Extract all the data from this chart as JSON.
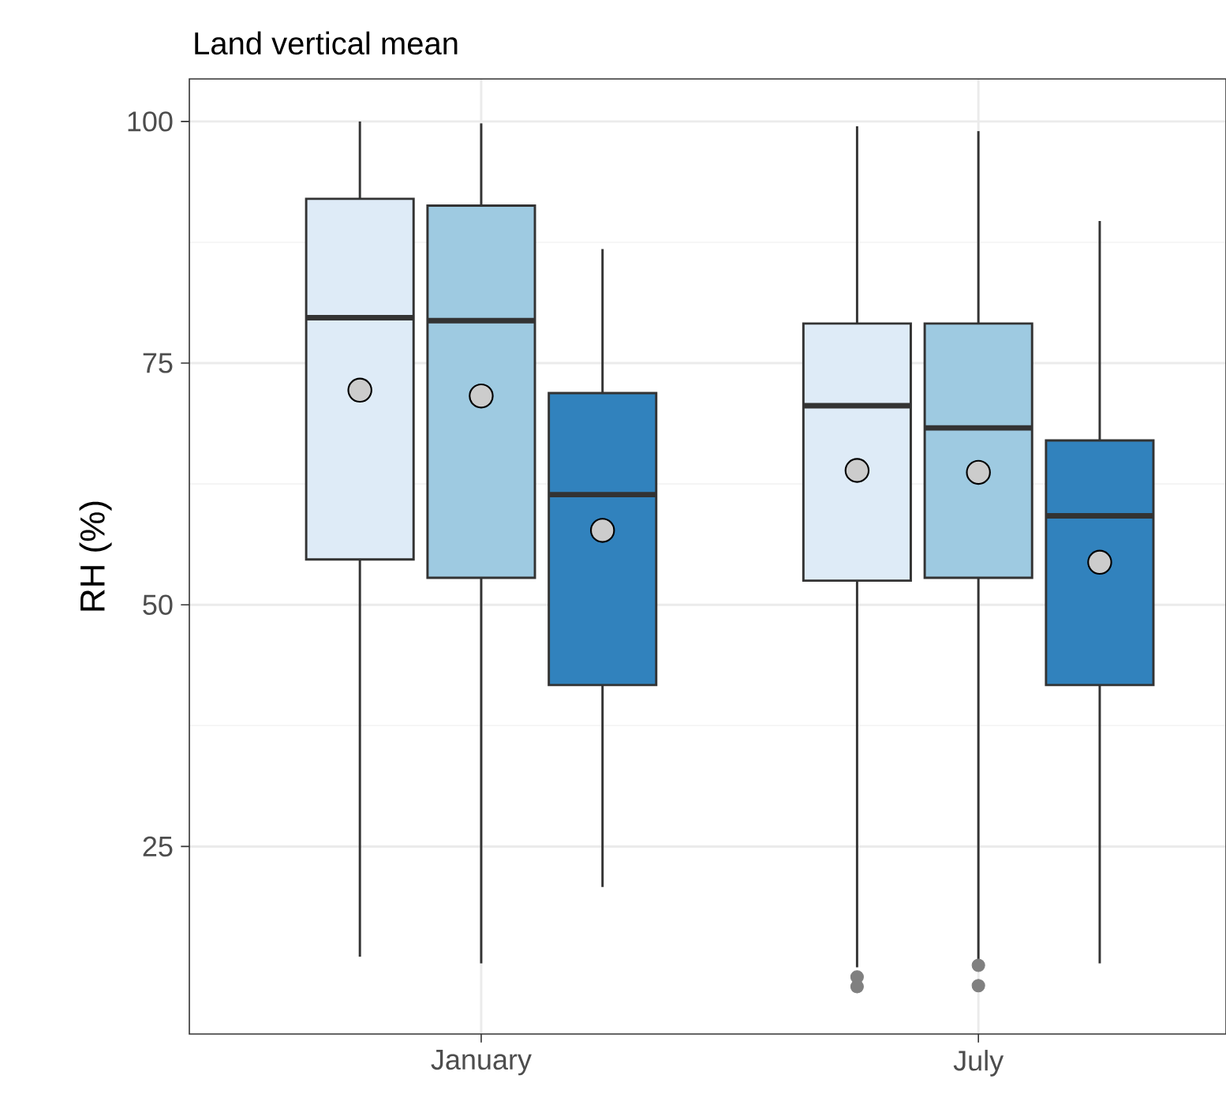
{
  "chart_data": {
    "type": "box",
    "title": "Land vertical mean",
    "ylabel": "RH (%)",
    "categories": [
      "January",
      "July"
    ],
    "ylim": [
      5.6,
      104.4
    ],
    "yticks": [
      25,
      50,
      75,
      100
    ],
    "grid": true,
    "series": [
      {
        "color": "#deebf7",
        "boxes": [
          {
            "low": 13.6,
            "q1": 54.7,
            "median": 79.7,
            "q3": 92,
            "high": 100,
            "mean": 72.2
          },
          {
            "low": 12.5,
            "q1": 52.5,
            "median": 70.6,
            "q3": 79.1,
            "high": 99.5,
            "mean": 63.9,
            "outliers": [
              11.5,
              10.5
            ]
          }
        ]
      },
      {
        "color": "#9ecae1",
        "boxes": [
          {
            "low": 12.9,
            "q1": 52.8,
            "median": 79.4,
            "q3": 91.3,
            "high": 99.8,
            "mean": 71.6
          },
          {
            "low": 12.4,
            "q1": 52.8,
            "median": 68.3,
            "q3": 79.1,
            "high": 99,
            "mean": 63.7,
            "outliers": [
              12.7,
              10.6
            ]
          }
        ]
      },
      {
        "color": "#3182bd",
        "boxes": [
          {
            "low": 20.8,
            "q1": 41.7,
            "median": 61.4,
            "q3": 71.9,
            "high": 86.8,
            "mean": 57.7
          },
          {
            "low": 12.9,
            "q1": 41.7,
            "median": 59.2,
            "q3": 67,
            "high": 89.7,
            "mean": 54.4
          }
        ]
      }
    ]
  }
}
